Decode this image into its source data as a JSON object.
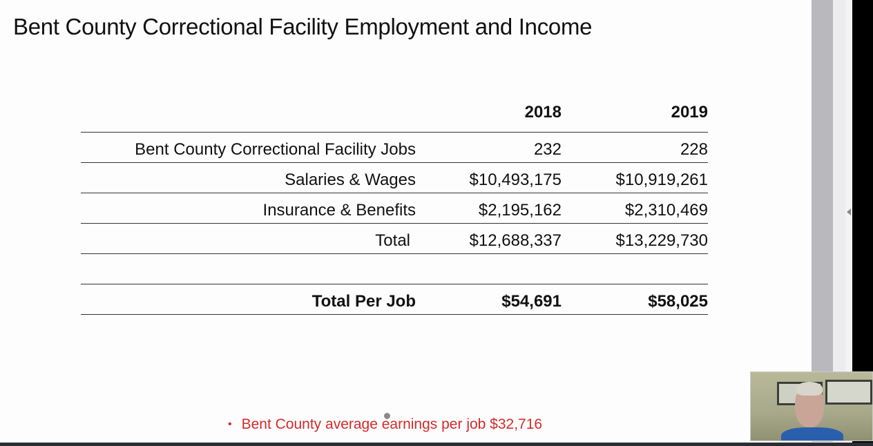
{
  "slide": {
    "title": "Bent County Correctional Facility Employment and Income",
    "table": {
      "headers": [
        "",
        "2018",
        "2019"
      ],
      "rows": [
        {
          "label": "Bent County Correctional Facility Jobs",
          "y2018": "232",
          "y2019": "228"
        },
        {
          "label": "Salaries & Wages",
          "y2018": "$10,493,175",
          "y2019": "$10,919,261"
        },
        {
          "label": "Insurance & Benefits",
          "y2018": "$2,195,162",
          "y2019": "$2,310,469"
        },
        {
          "label": "Total",
          "y2018": "$12,688,337",
          "y2019": "$13,229,730"
        },
        {
          "label": "",
          "y2018": "",
          "y2019": ""
        },
        {
          "label": "Total Per Job",
          "y2018": "$54,691",
          "y2019": "$58,025"
        }
      ]
    },
    "bullet": "Bent County average earnings per job $32,716",
    "bullet_color": "#d42a2a"
  },
  "ui": {
    "scroll_arrow_icon": "triangle-left-icon",
    "webcam": "presenter-webcam-video"
  }
}
